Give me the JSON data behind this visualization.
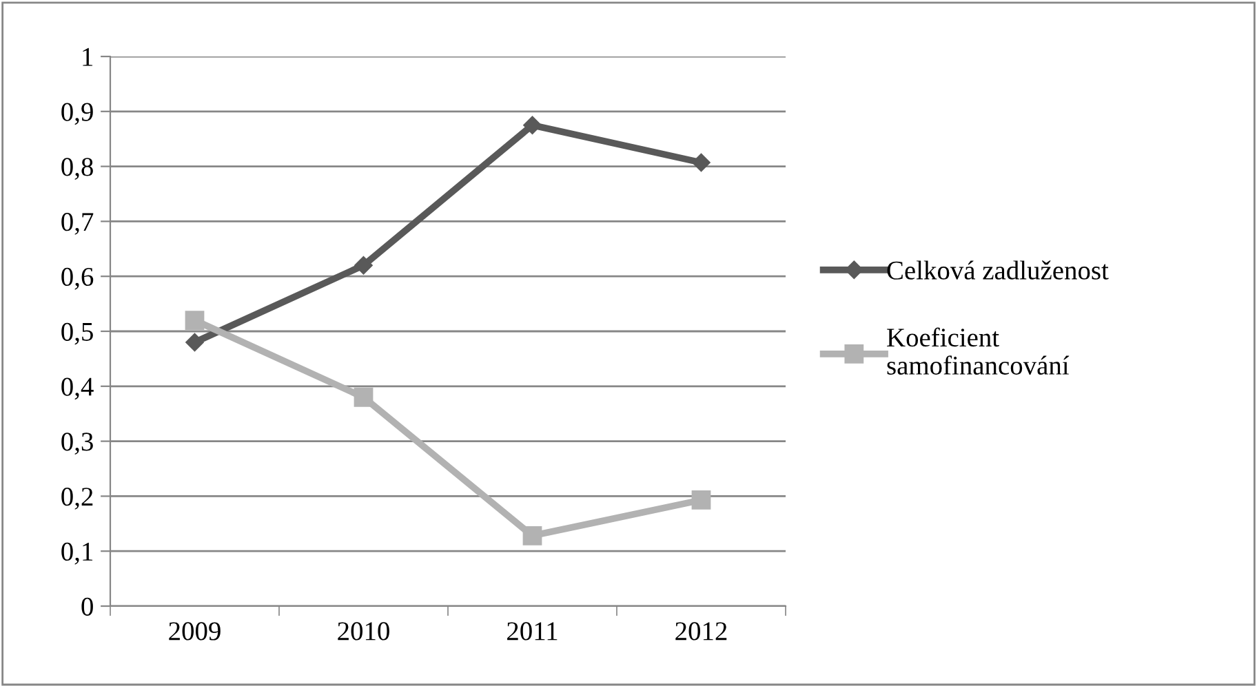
{
  "chart_data": {
    "type": "line",
    "categories": [
      "2009",
      "2010",
      "2011",
      "2012"
    ],
    "series": [
      {
        "name": "Celková zadluženost",
        "color": "#595959",
        "marker": "diamond",
        "values": [
          0.48,
          0.62,
          0.875,
          0.807
        ]
      },
      {
        "name": "Koeficient\nsamofinancování",
        "color": "#b2b2b2",
        "marker": "square",
        "values": [
          0.52,
          0.38,
          0.128,
          0.193
        ]
      }
    ],
    "ylim": [
      0,
      1
    ],
    "yticks": [
      {
        "value": 0,
        "label": "0"
      },
      {
        "value": 0.1,
        "label": "0,1"
      },
      {
        "value": 0.2,
        "label": "0,2"
      },
      {
        "value": 0.3,
        "label": "0,3"
      },
      {
        "value": 0.4,
        "label": "0,4"
      },
      {
        "value": 0.5,
        "label": "0,5"
      },
      {
        "value": 0.6,
        "label": "0,6"
      },
      {
        "value": 0.7,
        "label": "0,7"
      },
      {
        "value": 0.8,
        "label": "0,8"
      },
      {
        "value": 0.9,
        "label": "0,9"
      },
      {
        "value": 1,
        "label": "1"
      }
    ],
    "grid": "y",
    "legend": "right"
  }
}
